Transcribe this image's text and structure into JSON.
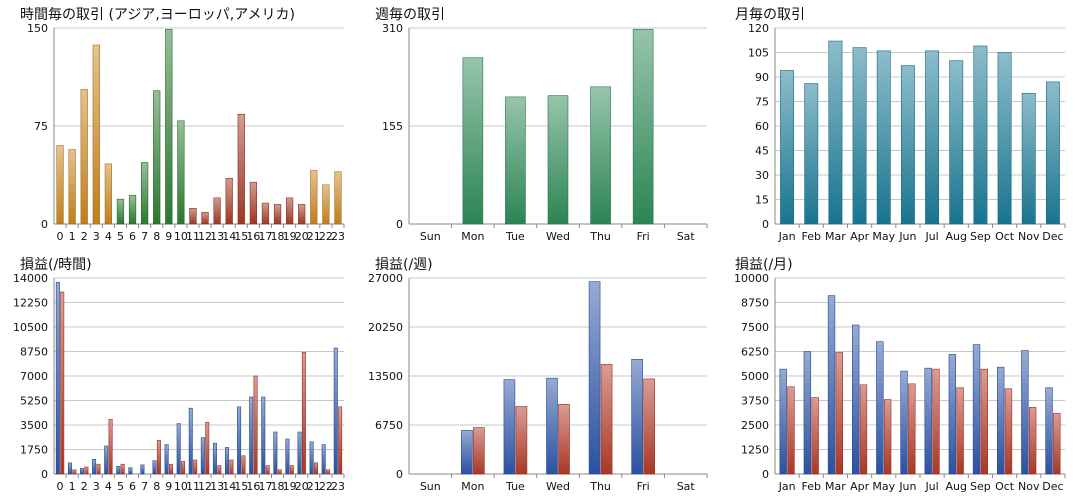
{
  "chart_data": [
    {
      "type": "bar",
      "title": "時間毎の取引 (アジア,ヨーロッパ,アメリカ)",
      "categories": [
        "0",
        "1",
        "2",
        "3",
        "4",
        "5",
        "6",
        "7",
        "8",
        "9",
        "10",
        "11",
        "12",
        "13",
        "14",
        "15",
        "16",
        "17",
        "18",
        "19",
        "20",
        "21",
        "22",
        "23"
      ],
      "values": [
        60,
        57,
        103,
        137,
        46,
        19,
        22,
        47,
        102,
        149,
        79,
        12,
        9,
        20,
        35,
        84,
        32,
        16,
        15,
        20,
        15,
        41,
        30,
        40
      ],
      "bar_colors": [
        "#c8851e",
        "#c8851e",
        "#c8851e",
        "#c8851e",
        "#c8851e",
        "#2e7d32",
        "#2e7d32",
        "#2e7d32",
        "#2e7d32",
        "#2e7d32",
        "#2e7d32",
        "#a33a26",
        "#a33a26",
        "#a33a26",
        "#a33a26",
        "#a33a26",
        "#a33a26",
        "#a33a26",
        "#a33a26",
        "#a33a26",
        "#a33a26",
        "#c8851e",
        "#c8851e",
        "#c8851e"
      ],
      "yticks": [
        "0",
        "75",
        "150"
      ],
      "ylim": [
        0,
        150
      ],
      "grid": true
    },
    {
      "type": "bar",
      "title": "週毎の取引",
      "categories": [
        "Sun",
        "Mon",
        "Tue",
        "Wed",
        "Thu",
        "Fri",
        "Sat"
      ],
      "values": [
        0,
        263,
        201,
        203,
        217,
        308,
        0
      ],
      "bar_colors": [
        "#2e8b57"
      ],
      "yticks": [
        "0",
        "155",
        "310"
      ],
      "ylim": [
        0,
        310
      ],
      "grid": true
    },
    {
      "type": "bar",
      "title": "月毎の取引",
      "categories": [
        "Jan",
        "Feb",
        "Mar",
        "Apr",
        "May",
        "Jun",
        "Jul",
        "Aug",
        "Sep",
        "Oct",
        "Nov",
        "Dec"
      ],
      "values": [
        94,
        86,
        112,
        108,
        106,
        97,
        106,
        100,
        109,
        105,
        80,
        87
      ],
      "bar_colors": [
        "#1a7a96"
      ],
      "yticks": [
        "0",
        "15",
        "30",
        "45",
        "60",
        "75",
        "90",
        "105",
        "120"
      ],
      "ylim": [
        0,
        120
      ],
      "grid": true
    },
    {
      "type": "bar",
      "title": "損益(/時間)",
      "categories": [
        "0",
        "1",
        "2",
        "3",
        "4",
        "5",
        "6",
        "7",
        "8",
        "9",
        "10",
        "11",
        "12",
        "13",
        "14",
        "15",
        "16",
        "17",
        "18",
        "19",
        "20",
        "21",
        "22",
        "23"
      ],
      "series": [
        {
          "values": [
            13700,
            800,
            400,
            1050,
            2000,
            550,
            450,
            650,
            950,
            2100,
            3600,
            4700,
            2600,
            2200,
            1900,
            4800,
            5500,
            5500,
            3000,
            2500,
            3000,
            2300,
            2100,
            9000
          ],
          "color": "#2d55a8"
        },
        {
          "values": [
            13000,
            300,
            500,
            700,
            3900,
            700,
            0,
            0,
            2400,
            700,
            900,
            1000,
            3700,
            600,
            1000,
            1300,
            7000,
            600,
            300,
            600,
            8700,
            800,
            300,
            4800
          ],
          "color": "#b23a28"
        }
      ],
      "yticks": [
        "0",
        "1750",
        "3500",
        "5250",
        "7000",
        "8750",
        "10500",
        "12250",
        "14000"
      ],
      "ylim": [
        0,
        14000
      ],
      "grid": true
    },
    {
      "type": "bar",
      "title": "損益(/週)",
      "categories": [
        "Sun",
        "Mon",
        "Tue",
        "Wed",
        "Thu",
        "Fri",
        "Sat"
      ],
      "series": [
        {
          "values": [
            0,
            6000,
            13000,
            13200,
            26500,
            15800,
            0
          ],
          "color": "#2d55a8"
        },
        {
          "values": [
            0,
            6400,
            9300,
            9600,
            15100,
            13100,
            0
          ],
          "color": "#b23a28"
        }
      ],
      "yticks": [
        "0",
        "6750",
        "13500",
        "20250",
        "27000"
      ],
      "ylim": [
        0,
        27000
      ],
      "grid": true
    },
    {
      "type": "bar",
      "title": "損益(/月)",
      "categories": [
        "Jan",
        "Feb",
        "Mar",
        "Apr",
        "May",
        "Jun",
        "Jul",
        "Aug",
        "Sep",
        "Oct",
        "Nov",
        "Dec"
      ],
      "series": [
        {
          "values": [
            5350,
            6250,
            9100,
            7600,
            6750,
            5250,
            5400,
            6100,
            6600,
            5450,
            6300,
            4400
          ],
          "color": "#2d55a8"
        },
        {
          "values": [
            4450,
            3900,
            6200,
            4550,
            3800,
            4600,
            5350,
            4400,
            5350,
            4350,
            3400,
            3100
          ],
          "color": "#b23a28"
        }
      ],
      "yticks": [
        "0",
        "1250",
        "2500",
        "3750",
        "5000",
        "6250",
        "7500",
        "8750",
        "10000"
      ],
      "ylim": [
        0,
        10000
      ],
      "grid": true
    }
  ]
}
